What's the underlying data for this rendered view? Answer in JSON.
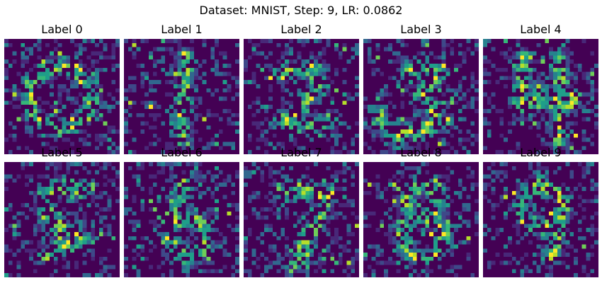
{
  "chart_data": {
    "type": "heatmap",
    "title": "Dataset: MNIST, Step: 9, LR: 0.0862",
    "grid": false,
    "colormap": "viridis",
    "colormap_colors": [
      "#440154",
      "#482878",
      "#3e4989",
      "#31688e",
      "#26828e",
      "#1f9e89",
      "#35b779",
      "#6ece58",
      "#b5de2b",
      "#fde725"
    ],
    "layout": "2 rows x 5 columns",
    "panels": [
      {
        "title": "Label 0",
        "pattern": "ring"
      },
      {
        "title": "Label 1",
        "pattern": "vertical-stroke"
      },
      {
        "title": "Label 2",
        "pattern": "two-shape"
      },
      {
        "title": "Label 3",
        "pattern": "three-shape"
      },
      {
        "title": "Label 4",
        "pattern": "four-shape"
      },
      {
        "title": "Label 5",
        "pattern": "five-shape"
      },
      {
        "title": "Label 6",
        "pattern": "six-shape"
      },
      {
        "title": "Label 7",
        "pattern": "seven-shape"
      },
      {
        "title": "Label 8",
        "pattern": "eight-shape"
      },
      {
        "title": "Label 9",
        "pattern": "nine-shape"
      }
    ]
  }
}
